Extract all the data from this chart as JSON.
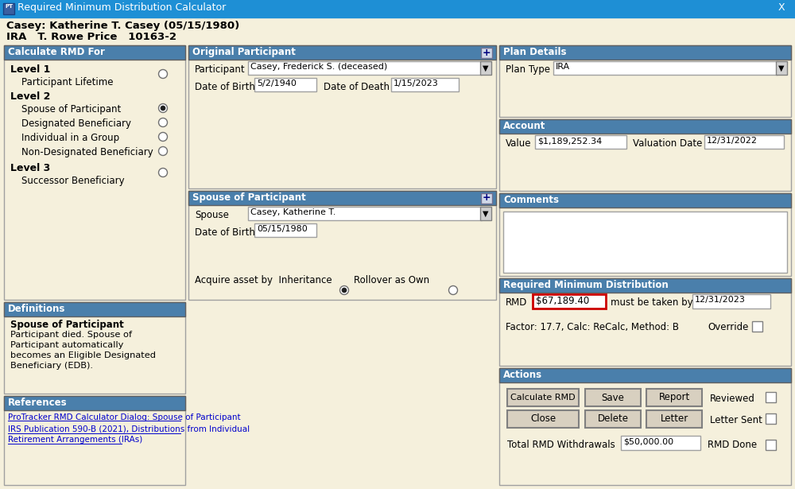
{
  "title_bar_text": "Required Minimum Distribution Calculator",
  "title_bar_color": "#1E8FD5",
  "bg_color": "#F5F0DC",
  "header_line1": "Casey: Katherine T. Casey (05/15/1980)",
  "header_line2": "IRA   T. Rowe Price   10163-2",
  "section_header_color": "#4A7FAB",
  "section_header_text_color": "#FFFFFF",
  "field_bg": "#FFFFFF",
  "field_border": "#A0A0A0",
  "button_color": "#D8D0C0",
  "button_border": "#808080",
  "sections": {
    "calc_rmd_for": "Calculate RMD For",
    "original_participant": "Original Participant",
    "plan_details": "Plan Details",
    "spouse_of_participant": "Spouse of Participant",
    "account": "Account",
    "comments": "Comments",
    "rmd": "Required Minimum Distribution",
    "actions": "Actions",
    "definitions": "Definitions",
    "references": "References"
  },
  "participant_name": "Casey, Frederick S. (deceased)",
  "dob": "5/2/1940",
  "dod": "1/15/2023",
  "spouse_name": "Casey, Katherine T.",
  "spouse_dob": "05/15/1980",
  "plan_type": "IRA",
  "account_value": "$1,189,252.34",
  "valuation_date": "12/31/2022",
  "rmd_value": "$67,189.40",
  "rmd_deadline": "12/31/2023",
  "rmd_factor": "Factor: 17.7, Calc: ReCalc, Method: B",
  "definitions_title": "Spouse of Participant",
  "definitions_text": "Participant died. Spouse of\nParticipant automatically\nbecomes an Eligible Designated\nBeneficiary (EDB).",
  "ref1": "ProTracker RMD Calculator Dialog: Spouse of Participant",
  "ref2a": "IRS Publication 590-B (2021), Distributions from Individual Retirement Arrangements (IRAs)",
  "total_rmd_withdrawals": "$50,000.00",
  "text_color": "#000000",
  "rmd_box_border": "#CC0000",
  "link_color": "#0000CC"
}
